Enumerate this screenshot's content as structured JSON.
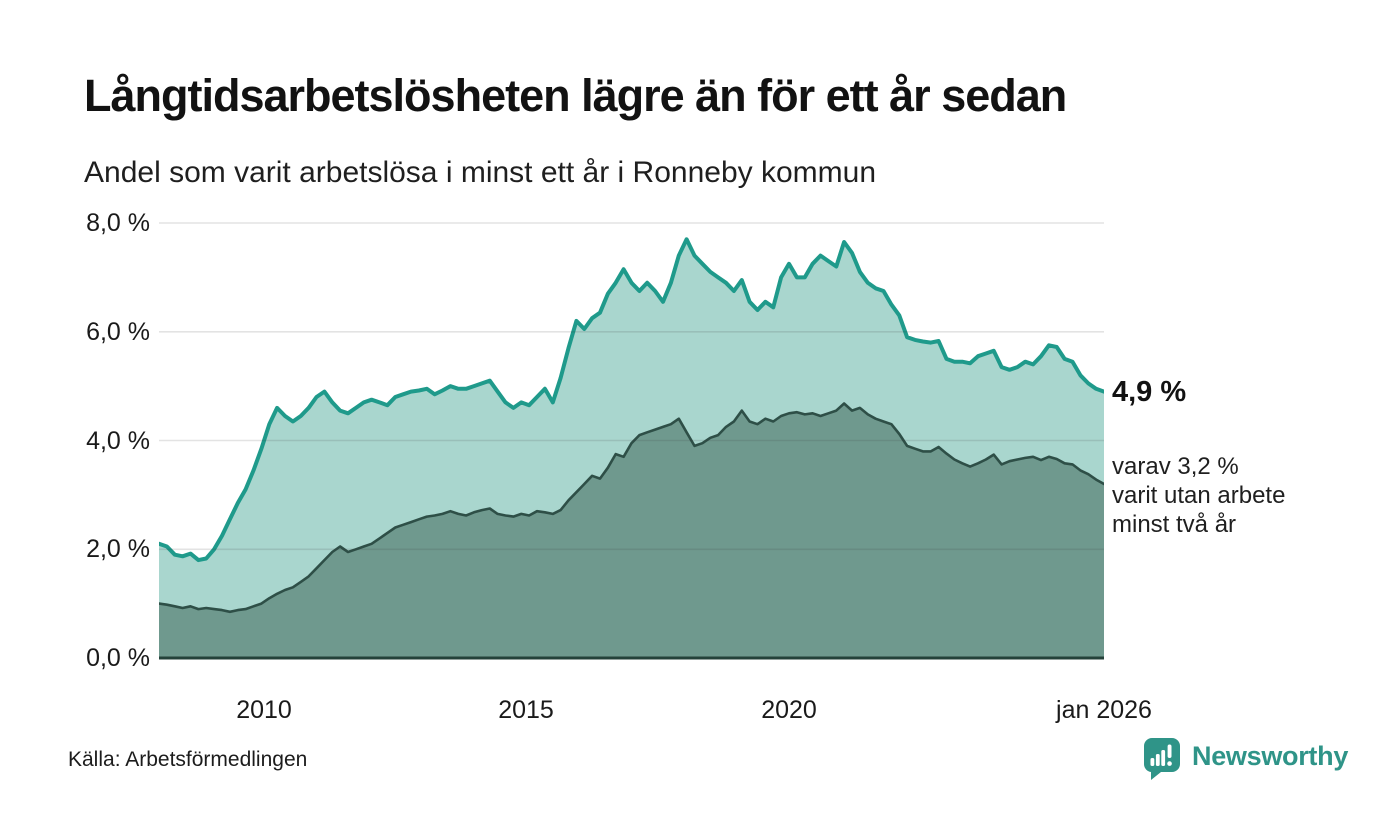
{
  "header": {
    "title": "Långtidsarbetslösheten lägre än för ett år sedan",
    "subtitle": "Andel som varit arbetslösa i minst ett år i Ronneby kommun"
  },
  "annotations": {
    "latest_value_label": "4,9 %",
    "latest_value": 4.9,
    "secondary_line1": "varav 3,2 %",
    "secondary_line2": "varit utan arbete",
    "secondary_line3": "minst två år",
    "secondary_value": 3.2
  },
  "footer": {
    "source": "Källa: Arbetsförmedlingen",
    "brand": "Newsworthy"
  },
  "colors": {
    "series1_line": "#1f9a8b",
    "series1_fill": "#a9d6ce",
    "series2_line": "#2e4f47",
    "series2_fill": "#6f998e",
    "axis_line": "#24423a",
    "gridline": "rgba(60,60,60,0.14)",
    "brand_teal": "#2f9488",
    "text": "#121212"
  },
  "chart_data": {
    "type": "area",
    "title": "Långtidsarbetslösheten lägre än för ett år sedan",
    "subtitle": "Andel som varit arbetslösa i minst ett år i Ronneby kommun",
    "xlabel": "",
    "ylabel": "",
    "x_start": 2008,
    "x_end": 2026,
    "x_step_years": 0.15,
    "ylim": [
      0,
      8
    ],
    "grid": "horizontal",
    "legend": "none",
    "yticks": [
      {
        "value": 0,
        "label": "0,0 %"
      },
      {
        "value": 2,
        "label": "2,0 %"
      },
      {
        "value": 4,
        "label": "4,0 %"
      },
      {
        "value": 6,
        "label": "6,0 %"
      },
      {
        "value": 8,
        "label": "8,0 %"
      }
    ],
    "xticks": [
      {
        "value": 2010,
        "label": "2010"
      },
      {
        "value": 2015,
        "label": "2015"
      },
      {
        "value": 2020,
        "label": "2020"
      },
      {
        "value": 2026,
        "label": "jan 2026"
      }
    ],
    "series": [
      {
        "name": "Andel arbetslösa minst ett år",
        "latest_label": "4,9 %",
        "line_color": "#1f9a8b",
        "fill_color": "#a9d6ce",
        "line_width": 4,
        "values": [
          2.1,
          2.05,
          1.9,
          1.87,
          1.92,
          1.8,
          1.83,
          2.0,
          2.25,
          2.55,
          2.85,
          3.1,
          3.45,
          3.85,
          4.3,
          4.6,
          4.45,
          4.35,
          4.45,
          4.6,
          4.8,
          4.9,
          4.7,
          4.55,
          4.5,
          4.6,
          4.7,
          4.75,
          4.7,
          4.65,
          4.8,
          4.85,
          4.9,
          4.92,
          4.95,
          4.85,
          4.92,
          5.0,
          4.95,
          4.95,
          5.0,
          5.05,
          5.1,
          4.9,
          4.7,
          4.6,
          4.7,
          4.65,
          4.8,
          4.95,
          4.7,
          5.15,
          5.7,
          6.2,
          6.05,
          6.25,
          6.35,
          6.7,
          6.9,
          7.15,
          6.9,
          6.75,
          6.9,
          6.75,
          6.55,
          6.9,
          7.4,
          7.7,
          7.4,
          7.25,
          7.1,
          7.0,
          6.9,
          6.75,
          6.95,
          6.55,
          6.4,
          6.55,
          6.45,
          7.0,
          7.25,
          7.0,
          7.0,
          7.25,
          7.4,
          7.3,
          7.2,
          7.65,
          7.45,
          7.1,
          6.9,
          6.8,
          6.75,
          6.5,
          6.3,
          5.9,
          5.85,
          5.82,
          5.8,
          5.83,
          5.5,
          5.45,
          5.45,
          5.42,
          5.55,
          5.6,
          5.65,
          5.35,
          5.3,
          5.35,
          5.45,
          5.4,
          5.55,
          5.75,
          5.72,
          5.5,
          5.45,
          5.2,
          5.05,
          4.95,
          4.9
        ]
      },
      {
        "name": "varav utan arbete minst två år",
        "latest_label": "3,2 %",
        "line_color": "#2e4f47",
        "fill_color": "#6f998e",
        "line_width": 2.6,
        "values": [
          1.0,
          0.98,
          0.95,
          0.92,
          0.95,
          0.9,
          0.92,
          0.9,
          0.88,
          0.85,
          0.88,
          0.9,
          0.95,
          1.0,
          1.1,
          1.18,
          1.25,
          1.3,
          1.4,
          1.5,
          1.65,
          1.8,
          1.95,
          2.05,
          1.95,
          2.0,
          2.05,
          2.1,
          2.2,
          2.3,
          2.4,
          2.45,
          2.5,
          2.55,
          2.6,
          2.62,
          2.65,
          2.7,
          2.65,
          2.62,
          2.68,
          2.72,
          2.75,
          2.65,
          2.62,
          2.6,
          2.65,
          2.62,
          2.7,
          2.68,
          2.65,
          2.72,
          2.9,
          3.05,
          3.2,
          3.35,
          3.3,
          3.5,
          3.75,
          3.7,
          3.95,
          4.1,
          4.15,
          4.2,
          4.25,
          4.3,
          4.4,
          4.15,
          3.9,
          3.95,
          4.05,
          4.1,
          4.25,
          4.35,
          4.55,
          4.35,
          4.3,
          4.4,
          4.35,
          4.45,
          4.5,
          4.52,
          4.48,
          4.5,
          4.45,
          4.5,
          4.55,
          4.68,
          4.55,
          4.6,
          4.48,
          4.4,
          4.35,
          4.3,
          4.12,
          3.9,
          3.85,
          3.8,
          3.8,
          3.88,
          3.76,
          3.65,
          3.58,
          3.52,
          3.58,
          3.65,
          3.74,
          3.56,
          3.62,
          3.65,
          3.68,
          3.7,
          3.64,
          3.7,
          3.66,
          3.58,
          3.56,
          3.45,
          3.38,
          3.28,
          3.2
        ]
      }
    ]
  }
}
